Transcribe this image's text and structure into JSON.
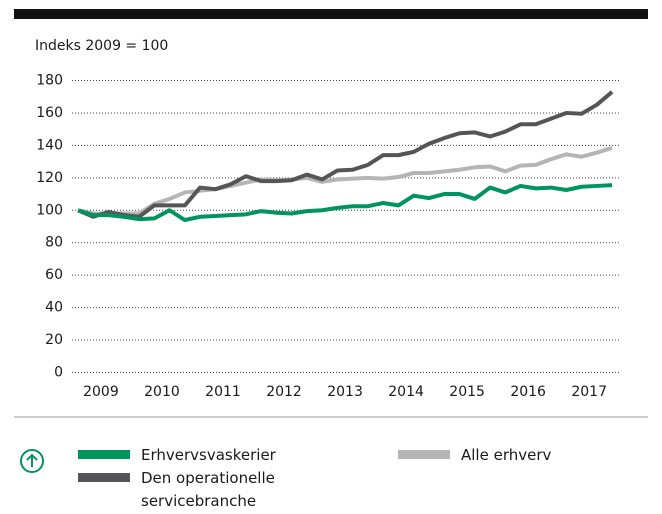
{
  "chart_data": {
    "type": "line",
    "y_label": "Indeks 2009 = 100",
    "x": [
      2009.125,
      2009.375,
      2009.625,
      2009.875,
      2010.125,
      2010.375,
      2010.625,
      2010.875,
      2011.125,
      2011.375,
      2011.625,
      2011.875,
      2012.125,
      2012.375,
      2012.625,
      2012.875,
      2013.125,
      2013.375,
      2013.625,
      2013.875,
      2014.125,
      2014.375,
      2014.625,
      2014.875,
      2015.125,
      2015.375,
      2015.625,
      2015.875,
      2016.125,
      2016.375,
      2016.625,
      2016.875,
      2017.125,
      2017.375,
      2017.625,
      2017.875
    ],
    "xlim": [
      2009,
      2018
    ],
    "xticks": [
      2009,
      2010,
      2011,
      2012,
      2013,
      2014,
      2015,
      2016,
      2017
    ],
    "ylim": [
      0,
      180
    ],
    "yticks": [
      0,
      20,
      40,
      60,
      80,
      100,
      120,
      140,
      160,
      180
    ],
    "grid": true,
    "series": [
      {
        "name": "Erhvervsvaskerier",
        "color": "#00945e",
        "values": [
          100,
          97,
          97,
          96,
          94.5,
          95,
          100,
          94,
          96,
          96.5,
          97,
          97.5,
          99.5,
          98.5,
          98,
          99.5,
          100,
          101.5,
          102.5,
          102.5,
          104.5,
          103,
          109,
          107.5,
          110,
          110,
          107,
          114,
          111,
          115,
          113.5,
          114,
          112.5,
          114.5,
          115,
          115.5
        ]
      },
      {
        "name": "Den operationelle servicebranche",
        "color": "#555557",
        "values": [
          100,
          96,
          99,
          97,
          96,
          103,
          103,
          103,
          114,
          113,
          116,
          121,
          118,
          118,
          118.5,
          122,
          119,
          124.5,
          125,
          128,
          134,
          134,
          136,
          141,
          144.5,
          147.5,
          148,
          145.5,
          148.5,
          153,
          153,
          156.5,
          160,
          159.5,
          165,
          173
        ]
      },
      {
        "name": "Alle erhverv",
        "color": "#b5b5b5",
        "values": [
          100,
          98,
          98,
          98,
          98,
          104,
          107,
          111,
          112,
          113,
          115,
          117,
          119,
          118.5,
          119,
          120,
          117.5,
          119,
          119.5,
          120,
          119.5,
          120.5,
          123,
          123,
          124,
          125,
          126.5,
          127,
          124,
          127.5,
          128,
          131.5,
          134.5,
          133,
          135.5,
          138.5
        ]
      }
    ]
  }
}
